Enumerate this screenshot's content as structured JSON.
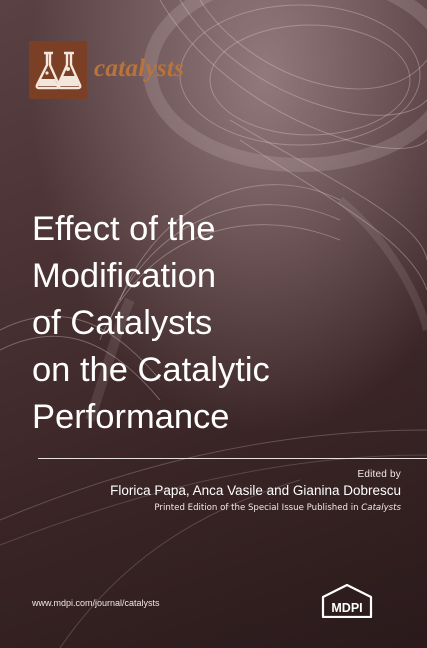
{
  "journal": {
    "name": "catalysts",
    "icon": "lab-flasks-icon",
    "brand_color": "#7a3f24",
    "name_color": "#b8743a"
  },
  "title_lines": [
    "Effect of the",
    "Modification",
    "of Catalysts",
    "on the Catalytic",
    "Performance"
  ],
  "edited_by": "Edited by",
  "editors": "Florica Papa, Anca Vasile and Gianina Dobrescu",
  "printed_edition": {
    "prefix": "Printed Edition of the Special Issue Published in ",
    "journal": "Catalysts"
  },
  "url": "www.mdpi.com/journal/catalysts",
  "publisher": {
    "name": "MDPI",
    "icon": "mdpi-logo-icon"
  }
}
